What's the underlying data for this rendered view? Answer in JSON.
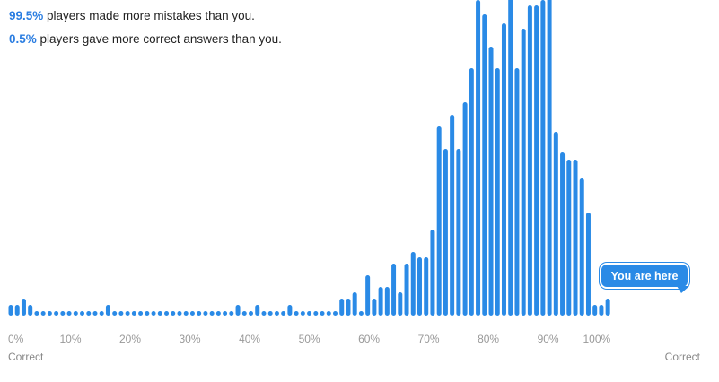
{
  "summary": {
    "better_pct": "99.5%",
    "better_text": " players made more mistakes than you.",
    "worse_pct": "0.5%",
    "worse_text": " players gave more correct answers than you."
  },
  "tooltip": {
    "label": "You are here"
  },
  "axis": {
    "left_word": "Correct",
    "right_word": "Correct"
  },
  "colors": {
    "bar": "#2a8ae6",
    "current_bar": "#c9d6e3",
    "accent": "#2a7de1"
  },
  "chart_data": {
    "type": "bar",
    "x_range": [
      0,
      100
    ],
    "x_tick_labels": [
      "0%",
      "10%",
      "20%",
      "30%",
      "40%",
      "50%",
      "60%",
      "70%",
      "80%",
      "90%",
      "100%"
    ],
    "current_index": 100,
    "values": [
      12,
      12,
      19,
      12,
      5,
      5,
      5,
      5,
      5,
      5,
      5,
      5,
      5,
      5,
      5,
      12,
      5,
      5,
      5,
      5,
      5,
      5,
      5,
      5,
      5,
      5,
      5,
      5,
      5,
      5,
      5,
      5,
      5,
      5,
      5,
      12,
      5,
      5,
      12,
      5,
      5,
      5,
      5,
      12,
      5,
      5,
      5,
      5,
      5,
      5,
      5,
      19,
      19,
      26,
      5,
      45,
      19,
      32,
      32,
      58,
      26,
      58,
      71,
      65,
      65,
      96,
      211,
      186,
      224,
      186,
      238,
      276,
      352,
      336,
      300,
      276,
      326,
      404,
      276,
      320,
      346,
      346,
      352,
      370,
      205,
      182,
      174,
      174,
      153,
      115,
      12,
      12,
      19
    ]
  }
}
